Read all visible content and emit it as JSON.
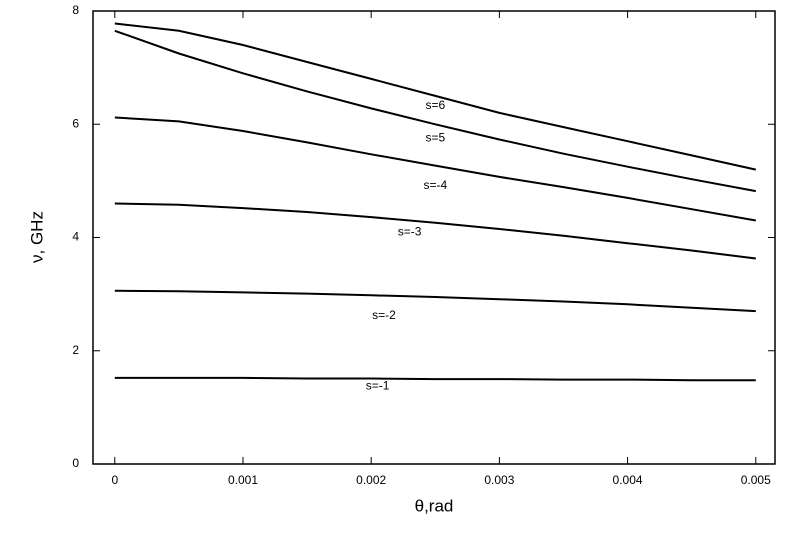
{
  "chart_data": {
    "type": "line",
    "xlabel": "θ,rad",
    "ylabel": "ν, GHz",
    "x": [
      0,
      0.0005,
      0.001,
      0.0015,
      0.002,
      0.0025,
      0.003,
      0.0035,
      0.004,
      0.0045,
      0.005
    ],
    "series": [
      {
        "name": "s=6",
        "color": "#000000",
        "values": [
          7.78,
          7.65,
          7.4,
          7.1,
          6.8,
          6.5,
          6.2,
          5.95,
          5.7,
          5.45,
          5.2
        ]
      },
      {
        "name": "s=5",
        "color": "#000000",
        "values": [
          7.65,
          7.25,
          6.9,
          6.58,
          6.28,
          6.0,
          5.73,
          5.48,
          5.25,
          5.03,
          4.82
        ]
      },
      {
        "name": "s=-4",
        "color": "#000000",
        "values": [
          6.12,
          6.05,
          5.88,
          5.68,
          5.47,
          5.27,
          5.07,
          4.89,
          4.7,
          4.5,
          4.3
        ]
      },
      {
        "name": "s=-3",
        "color": "#000000",
        "values": [
          4.6,
          4.58,
          4.52,
          4.45,
          4.36,
          4.26,
          4.15,
          4.03,
          3.9,
          3.77,
          3.63
        ]
      },
      {
        "name": "s=-2",
        "color": "#000000",
        "values": [
          3.06,
          3.05,
          3.03,
          3.01,
          2.98,
          2.95,
          2.91,
          2.87,
          2.82,
          2.76,
          2.7
        ]
      },
      {
        "name": "s=-1",
        "color": "#000000",
        "values": [
          1.52,
          1.52,
          1.52,
          1.51,
          1.51,
          1.5,
          1.5,
          1.49,
          1.49,
          1.48,
          1.48
        ]
      }
    ],
    "xlim": [
      -0.00017,
      0.00515
    ],
    "xticks": [
      0,
      0.001,
      0.002,
      0.003,
      0.004,
      0.005
    ],
    "ylim": [
      0,
      8
    ],
    "yticks": [
      0,
      2,
      4,
      6,
      8
    ],
    "grid": false
  }
}
